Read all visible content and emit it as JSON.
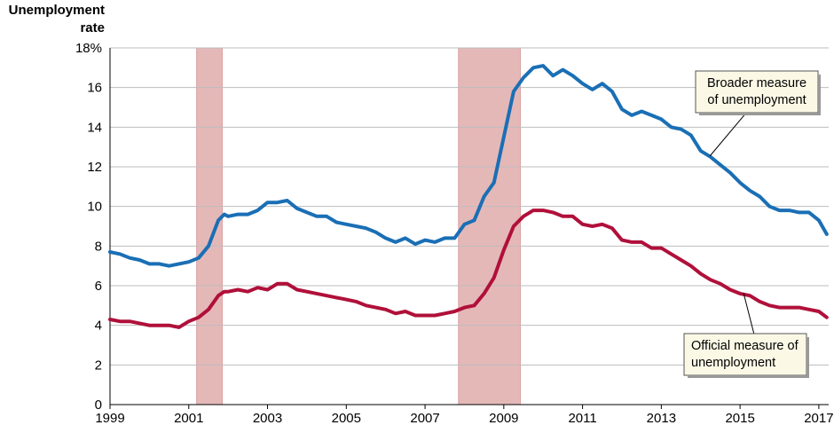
{
  "chart_data": {
    "type": "line",
    "ylabel_lines": [
      "Unemployment",
      "rate"
    ],
    "y_ticks": [
      "0",
      "2",
      "4",
      "6",
      "8",
      "10",
      "12",
      "14",
      "16",
      "18%"
    ],
    "ylim": [
      0,
      18
    ],
    "x_ticks": [
      "1999",
      "2001",
      "2003",
      "2005",
      "2007",
      "2009",
      "2011",
      "2013",
      "2015",
      "2017"
    ],
    "xlim": [
      1999,
      2017.25
    ],
    "grid": "horizontal",
    "recessions": [
      {
        "start": 2001.2,
        "end": 2001.85
      },
      {
        "start": 2007.85,
        "end": 2009.42
      }
    ],
    "colors": {
      "broader": "#1a6fb5",
      "official": "#b0103a",
      "recession": "#e5b8b8"
    },
    "series": [
      {
        "key": "broader",
        "callout_lines": [
          "Broader measure",
          "of unemployment"
        ],
        "x": [
          1999.0,
          1999.25,
          1999.5,
          1999.75,
          2000.0,
          2000.25,
          2000.5,
          2000.75,
          2001.0,
          2001.25,
          2001.5,
          2001.75,
          2001.9,
          2002.0,
          2002.25,
          2002.5,
          2002.75,
          2003.0,
          2003.25,
          2003.5,
          2003.75,
          2004.0,
          2004.25,
          2004.5,
          2004.75,
          2005.0,
          2005.25,
          2005.5,
          2005.75,
          2006.0,
          2006.25,
          2006.5,
          2006.75,
          2007.0,
          2007.25,
          2007.5,
          2007.75,
          2008.0,
          2008.25,
          2008.5,
          2008.75,
          2009.0,
          2009.25,
          2009.5,
          2009.75,
          2010.0,
          2010.25,
          2010.5,
          2010.75,
          2011.0,
          2011.25,
          2011.5,
          2011.75,
          2012.0,
          2012.25,
          2012.5,
          2012.75,
          2013.0,
          2013.25,
          2013.5,
          2013.75,
          2014.0,
          2014.25,
          2014.5,
          2014.75,
          2015.0,
          2015.25,
          2015.5,
          2015.75,
          2016.0,
          2016.25,
          2016.5,
          2016.75,
          2017.0,
          2017.2
        ],
        "values": [
          7.7,
          7.6,
          7.4,
          7.3,
          7.1,
          7.1,
          7.0,
          7.1,
          7.2,
          7.4,
          8.0,
          9.3,
          9.6,
          9.5,
          9.6,
          9.6,
          9.8,
          10.2,
          10.2,
          10.3,
          9.9,
          9.7,
          9.5,
          9.5,
          9.2,
          9.1,
          9.0,
          8.9,
          8.7,
          8.4,
          8.2,
          8.4,
          8.1,
          8.3,
          8.2,
          8.4,
          8.4,
          9.1,
          9.3,
          10.5,
          11.2,
          13.5,
          15.8,
          16.5,
          17.0,
          17.1,
          16.6,
          16.9,
          16.6,
          16.2,
          15.9,
          16.2,
          15.8,
          14.9,
          14.6,
          14.8,
          14.6,
          14.4,
          14.0,
          13.9,
          13.6,
          12.8,
          12.5,
          12.1,
          11.7,
          11.2,
          10.8,
          10.5,
          10.0,
          9.8,
          9.8,
          9.7,
          9.7,
          9.3,
          8.6
        ]
      },
      {
        "key": "official",
        "callout_lines": [
          "Official measure of",
          "unemployment"
        ],
        "x": [
          1999.0,
          1999.25,
          1999.5,
          1999.75,
          2000.0,
          2000.25,
          2000.5,
          2000.75,
          2001.0,
          2001.25,
          2001.5,
          2001.75,
          2001.9,
          2002.0,
          2002.25,
          2002.5,
          2002.75,
          2003.0,
          2003.25,
          2003.5,
          2003.75,
          2004.0,
          2004.25,
          2004.5,
          2004.75,
          2005.0,
          2005.25,
          2005.5,
          2005.75,
          2006.0,
          2006.25,
          2006.5,
          2006.75,
          2007.0,
          2007.25,
          2007.5,
          2007.75,
          2008.0,
          2008.25,
          2008.5,
          2008.75,
          2009.0,
          2009.25,
          2009.5,
          2009.75,
          2010.0,
          2010.25,
          2010.5,
          2010.75,
          2011.0,
          2011.25,
          2011.5,
          2011.75,
          2012.0,
          2012.25,
          2012.5,
          2012.75,
          2013.0,
          2013.25,
          2013.5,
          2013.75,
          2014.0,
          2014.25,
          2014.5,
          2014.75,
          2015.0,
          2015.25,
          2015.5,
          2015.75,
          2016.0,
          2016.25,
          2016.5,
          2016.75,
          2017.0,
          2017.2
        ],
        "values": [
          4.3,
          4.2,
          4.2,
          4.1,
          4.0,
          4.0,
          4.0,
          3.9,
          4.2,
          4.4,
          4.8,
          5.5,
          5.7,
          5.7,
          5.8,
          5.7,
          5.9,
          5.8,
          6.1,
          6.1,
          5.8,
          5.7,
          5.6,
          5.5,
          5.4,
          5.3,
          5.2,
          5.0,
          4.9,
          4.8,
          4.6,
          4.7,
          4.5,
          4.5,
          4.5,
          4.6,
          4.7,
          4.9,
          5.0,
          5.6,
          6.4,
          7.8,
          9.0,
          9.5,
          9.8,
          9.8,
          9.7,
          9.5,
          9.5,
          9.1,
          9.0,
          9.1,
          8.9,
          8.3,
          8.2,
          8.2,
          7.9,
          7.9,
          7.6,
          7.3,
          7.0,
          6.6,
          6.3,
          6.1,
          5.8,
          5.6,
          5.5,
          5.2,
          5.0,
          4.9,
          4.9,
          4.9,
          4.8,
          4.7,
          4.4
        ]
      }
    ]
  }
}
